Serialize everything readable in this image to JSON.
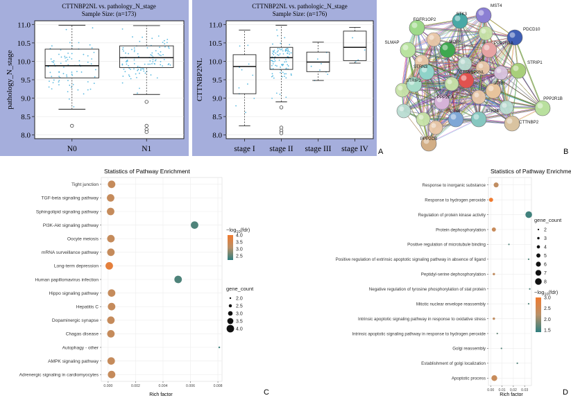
{
  "panel_labels": {
    "a": "A",
    "b": "B",
    "c": "C",
    "d": "D"
  },
  "chart_data": [
    {
      "id": "box1",
      "type": "boxplot",
      "title": "CTTNBP2NL vs. pathology_N_stage",
      "subtitle": "Sample Size: (n=173)",
      "ylabel": "pathology_N_stage",
      "ylim": [
        7.9,
        11.1
      ],
      "yticks": [
        "8.0",
        "8.5",
        "9.0",
        "9.5",
        "10.0",
        "10.5",
        "11.0"
      ],
      "categories": [
        "N0",
        "N1"
      ],
      "boxes": [
        {
          "min": 8.7,
          "q1": 9.55,
          "median": 9.88,
          "q3": 10.33,
          "max": 10.98,
          "outliers": [
            8.25
          ]
        },
        {
          "min": 9.1,
          "q1": 9.83,
          "median": 10.1,
          "q3": 10.42,
          "max": 10.97,
          "outliers": [
            8.9,
            8.25,
            8.15,
            8.08
          ]
        }
      ]
    },
    {
      "id": "box2",
      "type": "boxplot",
      "title": "CTTNBP2NL vs. pathologic_N_stage",
      "subtitle": "Sample Size: (n=176)",
      "ylabel": "CTTNBP2NL",
      "ylim": [
        7.9,
        11.1
      ],
      "yticks": [
        "8.0",
        "8.5",
        "9.0",
        "9.5",
        "10.0",
        "10.5",
        "11.0"
      ],
      "categories": [
        "stage I",
        "stage II",
        "stage III",
        "stage IV"
      ],
      "boxes": [
        {
          "min": 8.25,
          "q1": 9.12,
          "median": 9.86,
          "q3": 10.18,
          "max": 10.85,
          "outliers": []
        },
        {
          "min": 8.9,
          "q1": 9.78,
          "median": 10.1,
          "q3": 10.38,
          "max": 10.98,
          "outliers": [
            8.75,
            8.2,
            8.12,
            8.05
          ]
        },
        {
          "min": 9.48,
          "q1": 9.72,
          "median": 9.98,
          "q3": 10.25,
          "max": 10.52,
          "outliers": []
        },
        {
          "min": 9.95,
          "q1": 10.02,
          "median": 10.38,
          "q3": 10.82,
          "max": 10.92,
          "outliers": []
        }
      ]
    },
    {
      "id": "dot1",
      "type": "scatter",
      "title": "Statistics of Pathway Enrichment",
      "xlabel": "Rich factor",
      "xlim": [
        -0.0005,
        0.0083
      ],
      "xticks": [
        0,
        0.002,
        0.004,
        0.006,
        0.008
      ],
      "xtick_labels": [
        "0.000",
        "0.002",
        "0.004",
        "0.006",
        "0.008"
      ],
      "color_title": "-log10(fdr)",
      "color_ticks": [
        "4.0",
        "3.5",
        "3.0",
        "2.5"
      ],
      "color_range": [
        2.2,
        4.0
      ],
      "size_title": "gene_count",
      "size_ticks": [
        "2.0",
        "2.5",
        "3.0",
        "3.5",
        "4.0"
      ],
      "size_range": [
        2.0,
        4.0
      ],
      "colors": {
        "high": "#f07a2f",
        "mid": "#b99068",
        "low": "#2f7f7f"
      },
      "categories": [
        "Tight junction",
        "TGF-beta signaling pathway",
        "Sphingolipid signaling pathway",
        "PI3K-Akt signaling pathway",
        "Oocyte meiosis",
        "mRNA surveillance pathway",
        "Long-term depression",
        "Human papillomavirus infection",
        "Hippo signaling pathway",
        "Hepatitis C",
        "Dopaminergic synapse",
        "Chagas disease",
        "Autophagy - other",
        "AMPK signaling pathway",
        "Adrenergic signaling in cardiomyocytes"
      ],
      "points": [
        {
          "x": 0.00025,
          "count": 4,
          "fdr": 3.3
        },
        {
          "x": 0.00018,
          "count": 4,
          "fdr": 3.3
        },
        {
          "x": 0.00018,
          "count": 4,
          "fdr": 3.3
        },
        {
          "x": 0.0063,
          "count": 4,
          "fdr": 2.4
        },
        {
          "x": 0.0002,
          "count": 4,
          "fdr": 3.3
        },
        {
          "x": 0.0002,
          "count": 4,
          "fdr": 3.3
        },
        {
          "x": 8e-05,
          "count": 4,
          "fdr": 3.8
        },
        {
          "x": 0.0051,
          "count": 4,
          "fdr": 2.4
        },
        {
          "x": 0.00025,
          "count": 4,
          "fdr": 3.3
        },
        {
          "x": 0.00025,
          "count": 4,
          "fdr": 3.3
        },
        {
          "x": 0.0002,
          "count": 4,
          "fdr": 3.3
        },
        {
          "x": 0.0002,
          "count": 4,
          "fdr": 3.3
        },
        {
          "x": 0.0081,
          "count": 2,
          "fdr": 2.3
        },
        {
          "x": 0.00022,
          "count": 4,
          "fdr": 3.3
        },
        {
          "x": 0.00025,
          "count": 4,
          "fdr": 3.3
        }
      ]
    },
    {
      "id": "dot2",
      "type": "scatter",
      "title": "Statistics of Pathway Enrichment",
      "xlabel": "Rich factor",
      "xlim": [
        -0.002,
        0.036
      ],
      "xticks": [
        0,
        0.01,
        0.02,
        0.03
      ],
      "xtick_labels": [
        "0.00",
        "0.01",
        "0.02",
        "0.03"
      ],
      "color_title": "-log10(fdr)",
      "color_ticks": [
        "3.0",
        "2.5",
        "2.0",
        "1.5"
      ],
      "color_range": [
        1.4,
        3.0
      ],
      "size_title": "gene_count",
      "size_ticks": [
        "2",
        "3",
        "4",
        "5",
        "6",
        "7",
        "8"
      ],
      "size_range": [
        2,
        8
      ],
      "colors": {
        "high": "#f07a2f",
        "mid": "#b99068",
        "low": "#2f7f7f"
      },
      "categories": [
        "Response to inorganic substance",
        "Response to hydrogen peroxide",
        "Regulation of protein kinase activity",
        "Protein dephosphorylation",
        "Positive regulation of microtubule binding",
        "Positive regulation of extrinsic apoptotic signaling pathway in absence of ligand",
        "Peptidyl-serine dephosphorylation",
        "Negative regulation of tyrosine phosphorylation of stat protein",
        "Mitotic nuclear envelope reassembly",
        "Intrinsic apoptotic signaling pathway in response to oxidative stress",
        "Intrinsic apoptotic signaling pathway in response to hydrogen peroxide",
        "Golgi reassembly",
        "Establishment of golgi localization",
        "Apoptotic process"
      ],
      "points": [
        {
          "x": 0.0048,
          "count": 6,
          "fdr": 2.3
        },
        {
          "x": 0.0003,
          "count": 5,
          "fdr": 3.0
        },
        {
          "x": 0.0336,
          "count": 8,
          "fdr": 1.5
        },
        {
          "x": 0.0028,
          "count": 5,
          "fdr": 2.4
        },
        {
          "x": 0.0161,
          "count": 2,
          "fdr": 1.6
        },
        {
          "x": 0.0335,
          "count": 2,
          "fdr": 1.6
        },
        {
          "x": 0.0028,
          "count": 3,
          "fdr": 2.3
        },
        {
          "x": 0.0345,
          "count": 2,
          "fdr": 1.6
        },
        {
          "x": 0.0335,
          "count": 2,
          "fdr": 1.6
        },
        {
          "x": 0.0028,
          "count": 3,
          "fdr": 2.3
        },
        {
          "x": 0.0058,
          "count": 2,
          "fdr": 1.7
        },
        {
          "x": 0.0095,
          "count": 2,
          "fdr": 1.6
        },
        {
          "x": 0.0235,
          "count": 2,
          "fdr": 1.6
        },
        {
          "x": 0.0032,
          "count": 7,
          "fdr": 2.4
        }
      ]
    }
  ],
  "network": {
    "nodes": [
      {
        "label": "MST4",
        "color": "#8b7fd3"
      },
      {
        "label": "STK3",
        "color": "#48a9a6"
      },
      {
        "label": "FGFR1OP2",
        "color": "#9ed98a"
      },
      {
        "label": "PDCD10",
        "color": "#3f5fb5"
      },
      {
        "label": "SLMAP",
        "color": "#b9e3a0"
      },
      {
        "label": "MOB4",
        "color": "#3ea84f"
      },
      {
        "label": "PPP2R1A",
        "color": "#e6a3a3"
      },
      {
        "label": "STRIP1",
        "color": "#a8cf7a"
      },
      {
        "label": "STRN3",
        "color": "#8fd3c9"
      },
      {
        "label": "CTTNBP2NL",
        "color": "#e0524f"
      },
      {
        "label": "STRIP2",
        "color": "#a6dcc8"
      },
      {
        "label": "STRN",
        "color": "#e7c49c"
      },
      {
        "label": "PPP2CA",
        "color": "#d6b3d8"
      },
      {
        "label": "PPP2R1B",
        "color": "#b9e09e"
      },
      {
        "label": "STRN4",
        "color": "#7fa6d6"
      },
      {
        "label": "STK24",
        "color": "#86c7c0"
      },
      {
        "label": "CTTNBP2",
        "color": "#d9c3a0"
      },
      {
        "label": "PPP2CB",
        "color": "#d2ae86"
      }
    ]
  }
}
